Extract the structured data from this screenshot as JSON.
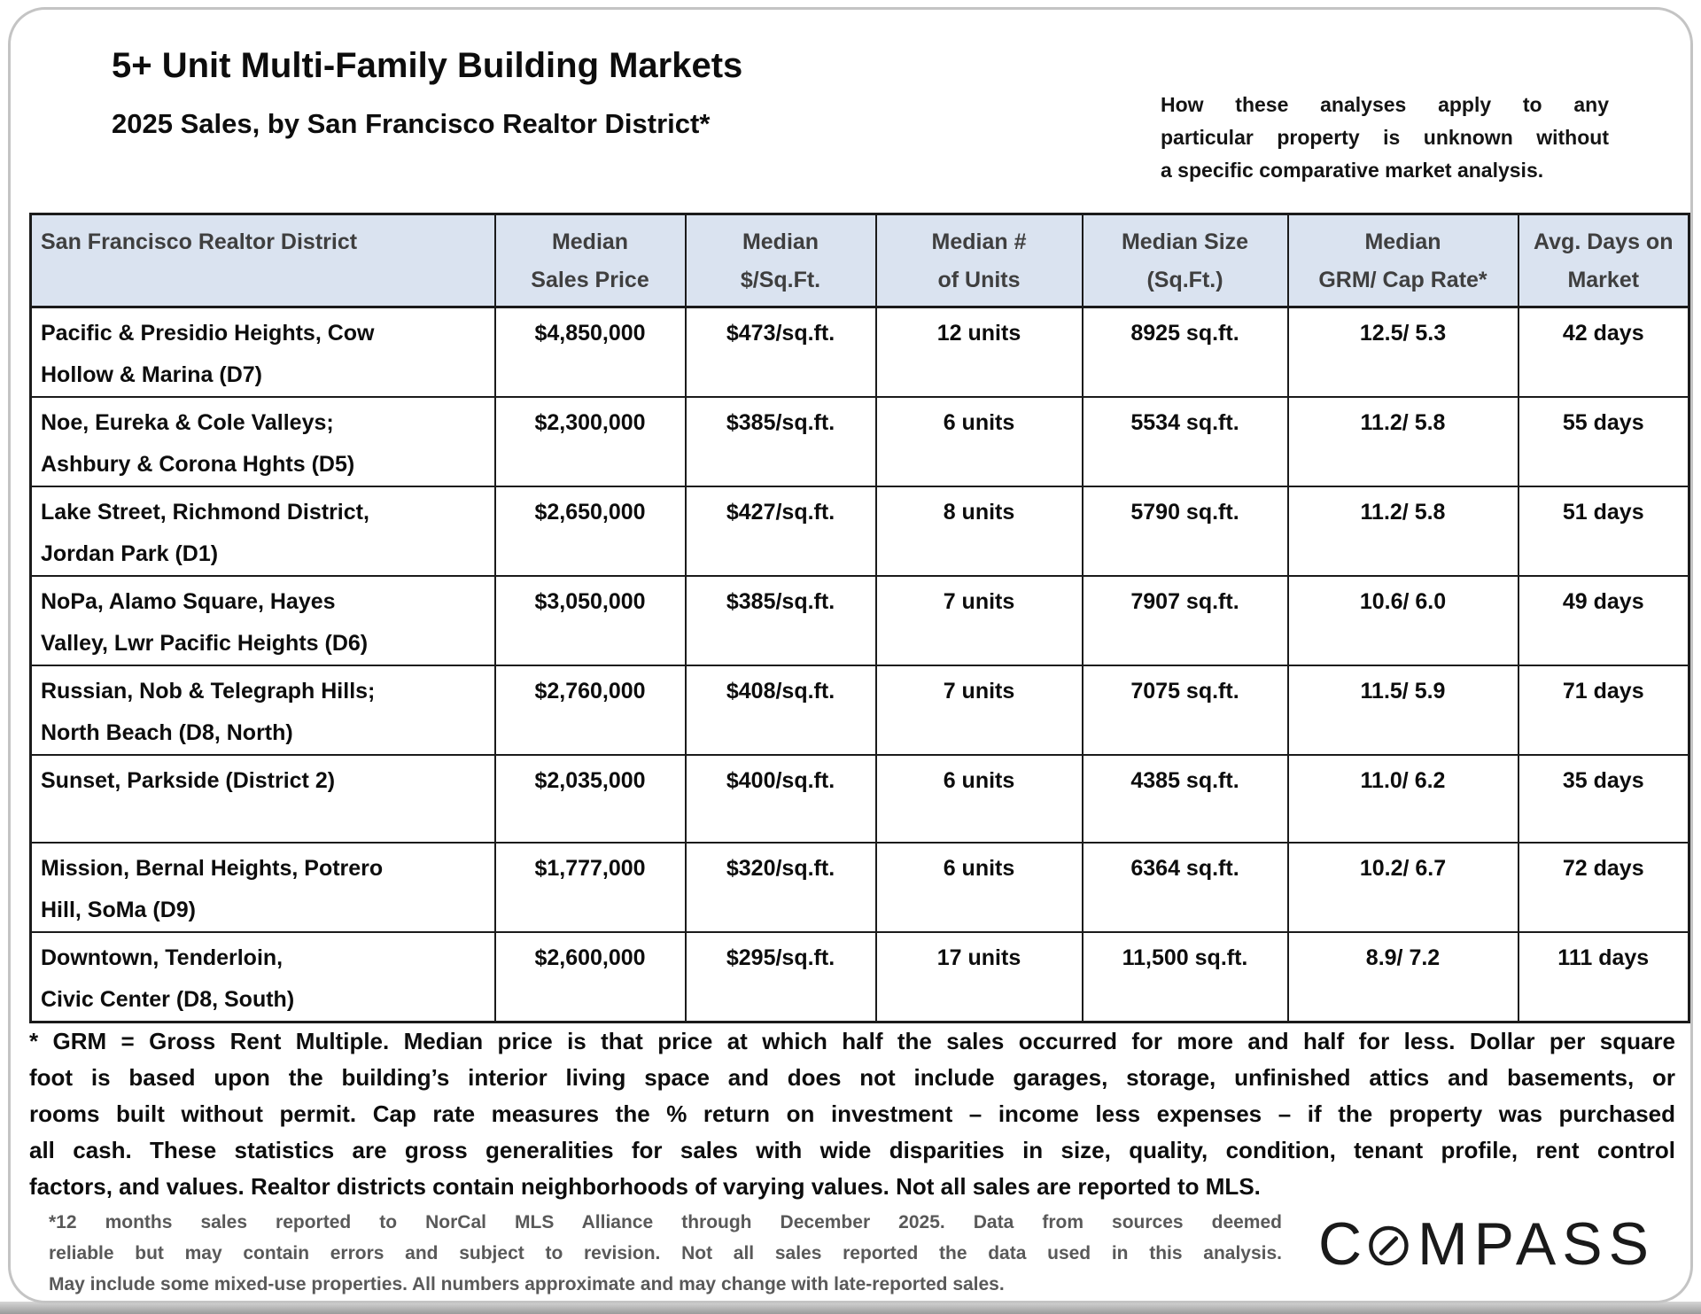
{
  "header": {
    "title": "5+ Unit Multi-Family Building Markets",
    "subtitle": "2025 Sales, by San Francisco Realtor District*",
    "note_lines": [
      "How these analyses apply to any",
      "particular property is unknown without",
      "a specific comparative market analysis."
    ]
  },
  "table": {
    "columns": [
      {
        "line1": "San Francisco Realtor District",
        "line2": ""
      },
      {
        "line1": "Median",
        "line2": "Sales Price"
      },
      {
        "line1": "Median",
        "line2": "$/Sq.Ft."
      },
      {
        "line1": "Median #",
        "line2": "of Units"
      },
      {
        "line1": "Median Size",
        "line2": "(Sq.Ft.)"
      },
      {
        "line1": "Median",
        "line2": "GRM/ Cap Rate*"
      },
      {
        "line1": "Avg. Days on",
        "line2": "Market"
      }
    ],
    "rows": [
      {
        "district": "Pacific & Presidio Heights, Cow\nHollow & Marina (D7)",
        "price": "$4,850,000",
        "ppsf": "$473/sq.ft.",
        "units": "12 units",
        "size": "8925 sq.ft.",
        "grm_cap": "12.5/ 5.3",
        "dom": "42 days"
      },
      {
        "district": "Noe, Eureka & Cole Valleys;\nAshbury & Corona Hghts (D5)",
        "price": "$2,300,000",
        "ppsf": "$385/sq.ft.",
        "units": "6 units",
        "size": "5534 sq.ft.",
        "grm_cap": "11.2/ 5.8",
        "dom": "55 days"
      },
      {
        "district": "Lake Street, Richmond District,\nJordan Park (D1)",
        "price": "$2,650,000",
        "ppsf": "$427/sq.ft.",
        "units": "8 units",
        "size": "5790 sq.ft.",
        "grm_cap": "11.2/ 5.8",
        "dom": "51 days"
      },
      {
        "district": "NoPa, Alamo Square, Hayes\nValley, Lwr Pacific Heights (D6)",
        "price": "$3,050,000",
        "ppsf": "$385/sq.ft.",
        "units": "7 units",
        "size": "7907 sq.ft.",
        "grm_cap": "10.6/ 6.0",
        "dom": "49 days"
      },
      {
        "district": "Russian, Nob & Telegraph Hills;\nNorth Beach (D8, North)",
        "price": "$2,760,000",
        "ppsf": "$408/sq.ft.",
        "units": "7 units",
        "size": "7075 sq.ft.",
        "grm_cap": "11.5/ 5.9",
        "dom": "71 days"
      },
      {
        "district": "Sunset, Parkside (District 2)",
        "price": "$2,035,000",
        "ppsf": "$400/sq.ft.",
        "units": "6 units",
        "size": "4385 sq.ft.",
        "grm_cap": "11.0/ 6.2",
        "dom": "35 days"
      },
      {
        "district": "Mission, Bernal Heights, Potrero\nHill, SoMa (D9)",
        "price": "$1,777,000",
        "ppsf": "$320/sq.ft.",
        "units": "6 units",
        "size": "6364 sq.ft.",
        "grm_cap": "10.2/ 6.7",
        "dom": "72 days"
      },
      {
        "district": "Downtown, Tenderloin,\nCivic Center (D8, South)",
        "price": "$2,600,000",
        "ppsf": "$295/sq.ft.",
        "units": "17 units",
        "size": "11,500 sq.ft.",
        "grm_cap": "8.9/ 7.2",
        "dom": "111 days"
      }
    ]
  },
  "footnote_lines": [
    "* GRM = Gross Rent Multiple. Median price is that price at which half the sales occurred for more and half for less. Dollar per square",
    "foot is based upon the building’s interior living space and does not include garages, storage, unfinished attics and basements, or",
    "rooms built without permit. Cap rate measures the % return on investment – income less expenses – if the property was purchased",
    "all cash. These statistics are gross generalities for sales with wide disparities in size, quality, condition, tenant profile, rent control",
    "factors, and values. Realtor districts contain neighborhoods of varying values. Not all sales are reported to MLS."
  ],
  "disclaimer_lines": [
    "*12 months sales reported to NorCal MLS Alliance through December 2025. Data from sources deemed",
    "reliable but may contain errors and subject to revision. Not all sales reported the data used in this analysis.",
    "May include some mixed-use properties. All numbers approximate and may change with late-reported sales."
  ],
  "logo": {
    "prefix": "C",
    "suffix": "MPASS",
    "name": "COMPASS"
  },
  "colors": {
    "header_bg": "#dae3f0",
    "header_text": "#3f3f3f",
    "table_border": "#1b1b1b",
    "body_text": "#0d0d0d",
    "disclaimer_text": "#595959",
    "frame_border": "#c4c4c4"
  }
}
